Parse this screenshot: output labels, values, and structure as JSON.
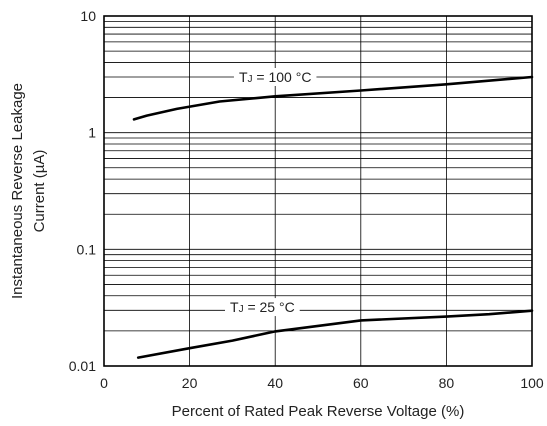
{
  "chart_data": {
    "type": "line",
    "title": "",
    "xlabel": "Percent of Rated Peak Reverse Voltage (%)",
    "ylabel": [
      "Instantaneous Reverse Leakage",
      "Current (µA)"
    ],
    "xlim": [
      0,
      100
    ],
    "ylim": [
      0.01,
      10
    ],
    "yscale": "log",
    "grid": true,
    "xticks": [
      0,
      20,
      40,
      60,
      80,
      100
    ],
    "xtick_labels": [
      "0",
      "20",
      "40",
      "60",
      "80",
      "100"
    ],
    "yticks": [
      0.01,
      0.1,
      1,
      10
    ],
    "ytick_labels": [
      "0.01",
      "0.1",
      "1",
      "10"
    ],
    "series": [
      {
        "name": "TJ = 100 °C",
        "label_main": "T",
        "label_sub": "J",
        "label_rest": " = 100 °C",
        "label_at": [
          40,
          3.0
        ],
        "x": [
          7,
          10,
          17,
          27,
          40,
          60,
          80,
          100
        ],
        "y": [
          1.3,
          1.4,
          1.6,
          1.85,
          2.05,
          2.3,
          2.6,
          3.0
        ]
      },
      {
        "name": "TJ = 25 °C",
        "label_main": "T",
        "label_sub": "J",
        "label_rest": " = 25 °C",
        "label_at": [
          37,
          0.032
        ],
        "x": [
          8,
          20,
          30,
          40,
          60,
          80,
          90,
          100
        ],
        "y": [
          0.0118,
          0.0142,
          0.0165,
          0.0198,
          0.0246,
          0.0265,
          0.0278,
          0.0298
        ]
      }
    ]
  }
}
